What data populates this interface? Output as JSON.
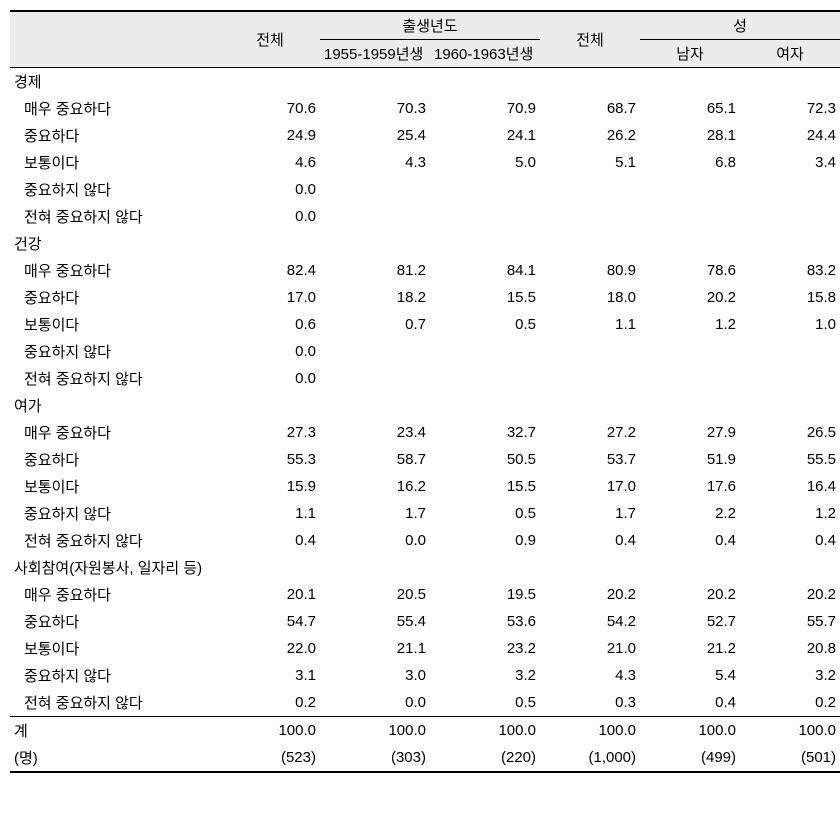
{
  "table": {
    "type": "table",
    "background_header": "#ececec",
    "border_color": "#000000",
    "text_color": "#000000",
    "font_size": 15,
    "columns": {
      "total1": "전체",
      "birth_group": "출생년도",
      "birth1": "1955-1959년생",
      "birth2": "1960-1963년생",
      "total2": "전체",
      "sex_group": "성",
      "male": "남자",
      "female": "여자"
    },
    "groups": [
      {
        "label": "경제",
        "rows": [
          {
            "label": "매우 중요하다",
            "v": [
              "70.6",
              "70.3",
              "70.9",
              "68.7",
              "65.1",
              "72.3"
            ]
          },
          {
            "label": "중요하다",
            "v": [
              "24.9",
              "25.4",
              "24.1",
              "26.2",
              "28.1",
              "24.4"
            ]
          },
          {
            "label": "보통이다",
            "v": [
              "4.6",
              "4.3",
              "5.0",
              "5.1",
              "6.8",
              "3.4"
            ]
          },
          {
            "label": "중요하지 않다",
            "v": [
              "0.0",
              "",
              "",
              "",
              "",
              ""
            ]
          },
          {
            "label": "전혀 중요하지 않다",
            "v": [
              "0.0",
              "",
              "",
              "",
              "",
              ""
            ]
          }
        ]
      },
      {
        "label": "건강",
        "rows": [
          {
            "label": "매우 중요하다",
            "v": [
              "82.4",
              "81.2",
              "84.1",
              "80.9",
              "78.6",
              "83.2"
            ]
          },
          {
            "label": "중요하다",
            "v": [
              "17.0",
              "18.2",
              "15.5",
              "18.0",
              "20.2",
              "15.8"
            ]
          },
          {
            "label": "보통이다",
            "v": [
              "0.6",
              "0.7",
              "0.5",
              "1.1",
              "1.2",
              "1.0"
            ]
          },
          {
            "label": "중요하지 않다",
            "v": [
              "0.0",
              "",
              "",
              "",
              "",
              ""
            ]
          },
          {
            "label": "전혀 중요하지 않다",
            "v": [
              "0.0",
              "",
              "",
              "",
              "",
              ""
            ]
          }
        ]
      },
      {
        "label": "여가",
        "rows": [
          {
            "label": "매우 중요하다",
            "v": [
              "27.3",
              "23.4",
              "32.7",
              "27.2",
              "27.9",
              "26.5"
            ]
          },
          {
            "label": "중요하다",
            "v": [
              "55.3",
              "58.7",
              "50.5",
              "53.7",
              "51.9",
              "55.5"
            ]
          },
          {
            "label": "보통이다",
            "v": [
              "15.9",
              "16.2",
              "15.5",
              "17.0",
              "17.6",
              "16.4"
            ]
          },
          {
            "label": "중요하지 않다",
            "v": [
              "1.1",
              "1.7",
              "0.5",
              "1.7",
              "2.2",
              "1.2"
            ]
          },
          {
            "label": "전혀 중요하지 않다",
            "v": [
              "0.4",
              "0.0",
              "0.9",
              "0.4",
              "0.4",
              "0.4"
            ]
          }
        ]
      },
      {
        "label": "사회참여(자원봉사, 일자리 등)",
        "rows": [
          {
            "label": "매우 중요하다",
            "v": [
              "20.1",
              "20.5",
              "19.5",
              "20.2",
              "20.2",
              "20.2"
            ]
          },
          {
            "label": "중요하다",
            "v": [
              "54.7",
              "55.4",
              "53.6",
              "54.2",
              "52.7",
              "55.7"
            ]
          },
          {
            "label": "보통이다",
            "v": [
              "22.0",
              "21.1",
              "23.2",
              "21.0",
              "21.2",
              "20.8"
            ]
          },
          {
            "label": "중요하지 않다",
            "v": [
              "3.1",
              "3.0",
              "3.2",
              "4.3",
              "5.4",
              "3.2"
            ]
          },
          {
            "label": "전혀 중요하지 않다",
            "v": [
              "0.2",
              "0.0",
              "0.5",
              "0.3",
              "0.4",
              "0.2"
            ]
          }
        ]
      }
    ],
    "footer": {
      "total_label": "계",
      "total_values": [
        "100.0",
        "100.0",
        "100.0",
        "100.0",
        "100.0",
        "100.0"
      ],
      "n_label": "(명)",
      "n_values": [
        "(523)",
        "(303)",
        "(220)",
        "(1,000)",
        "(499)",
        "(501)"
      ]
    }
  }
}
